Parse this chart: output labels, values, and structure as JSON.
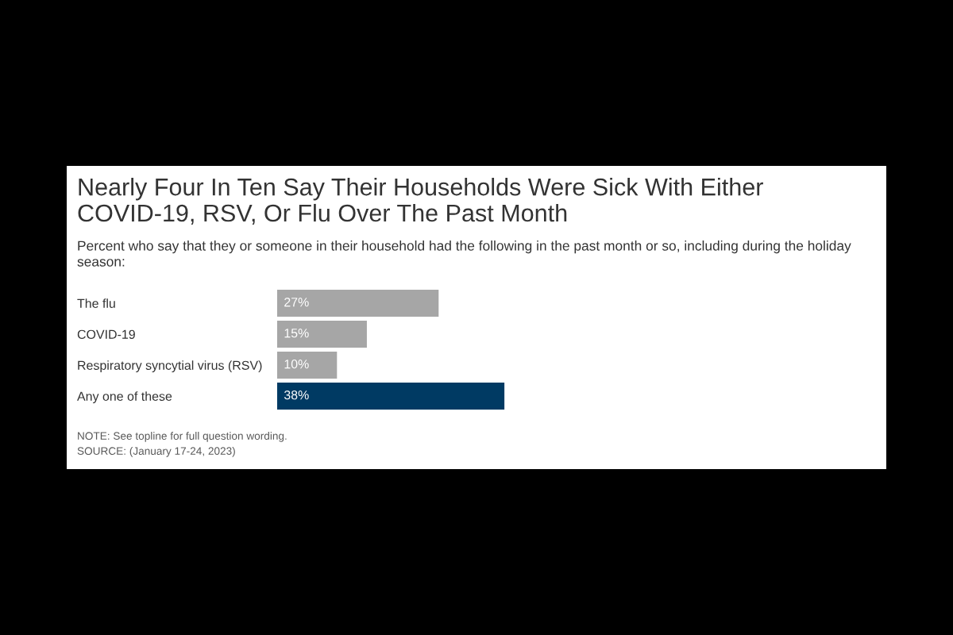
{
  "chart_data": {
    "type": "bar",
    "orientation": "horizontal",
    "title": "Nearly Four In Ten Say Their Households Were Sick With Either COVID-19, RSV, Or Flu Over The Past Month",
    "subtitle": "Percent who say that they or someone in their household had the following in the past month or so, including during the holiday season:",
    "categories": [
      "The flu",
      "COVID-19",
      "Respiratory syncytial virus (RSV)",
      "Any one of these"
    ],
    "values": [
      27,
      15,
      10,
      38
    ],
    "colors": [
      "#a6a6a6",
      "#a6a6a6",
      "#a6a6a6",
      "#003a63"
    ],
    "value_labels": [
      "27%",
      "15%",
      "10%",
      "38%"
    ],
    "annotations": [
      "NOTE: See topline for full question wording.",
      "SOURCE: (January 17-24, 2023)"
    ]
  }
}
